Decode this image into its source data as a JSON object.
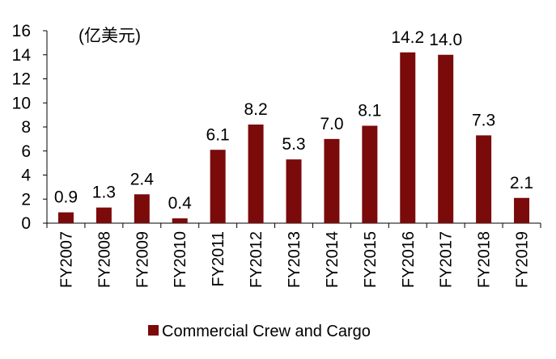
{
  "chart_data": {
    "type": "bar",
    "unit": "(亿美元)",
    "categories": [
      "FY2007",
      "FY2008",
      "FY2009",
      "FY2010",
      "FY2011",
      "FY2012",
      "FY2013",
      "FY2014",
      "FY2015",
      "FY2016",
      "FY2017",
      "FY2018",
      "FY2019"
    ],
    "series": [
      {
        "name": "Commercial Crew and Cargo",
        "color": "#7b0a0a",
        "values": [
          0.9,
          1.3,
          2.4,
          0.4,
          6.1,
          8.2,
          5.3,
          7.0,
          8.1,
          14.2,
          14.0,
          7.3,
          2.1
        ],
        "value_labels": [
          "0.9",
          "1.3",
          "2.4",
          "0.4",
          "6.1",
          "8.2",
          "5.3",
          "7.0",
          "8.1",
          "14.2",
          "14.0",
          "7.3",
          "2.1"
        ]
      }
    ],
    "ylim": [
      0,
      16
    ],
    "yticks": [
      "0",
      "2",
      "4",
      "6",
      "8",
      "10",
      "12",
      "14",
      "16"
    ],
    "legend_position": "bottom",
    "grid": false
  }
}
